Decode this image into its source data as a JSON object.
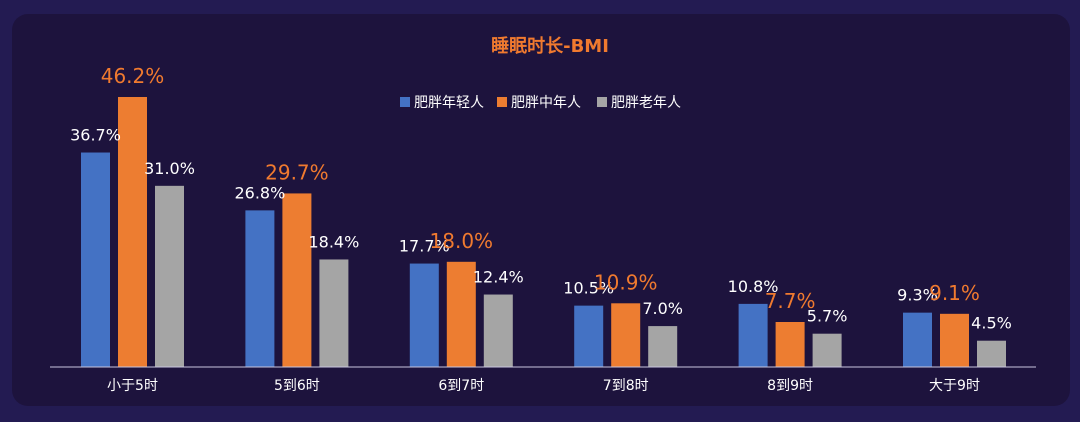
{
  "chart_data": {
    "type": "bar",
    "title": "睡眠时长-BMI",
    "categories": [
      "小于5时",
      "5到6时",
      "6到7时",
      "7到8时",
      "8到9时",
      "大于9时"
    ],
    "series": [
      {
        "name": "肥胖年轻人",
        "color": "#4472c4",
        "values": [
          36.7,
          26.8,
          17.7,
          10.5,
          10.8,
          9.3
        ],
        "labels": [
          "36.7%",
          "26.8%",
          "17.7%",
          "10.5%",
          "10.8%",
          "9.3%"
        ]
      },
      {
        "name": "肥胖中年人",
        "color": "#ed7d31",
        "values": [
          46.2,
          29.7,
          18.0,
          10.9,
          7.7,
          9.1
        ],
        "labels": [
          "46.2%",
          "29.7%",
          "18.0%",
          "10.9%",
          "7.7%",
          "9.1%"
        ]
      },
      {
        "name": "肥胖老年人",
        "color": "#a5a5a5",
        "values": [
          31.0,
          18.4,
          12.4,
          7.0,
          5.7,
          4.5
        ],
        "labels": [
          "31.0%",
          "18.4%",
          "12.4%",
          "7.0%",
          "5.7%",
          "4.5%"
        ]
      }
    ],
    "highlight_label_color": "#f07a2f",
    "legend_position": "top-center",
    "grid": false
  }
}
